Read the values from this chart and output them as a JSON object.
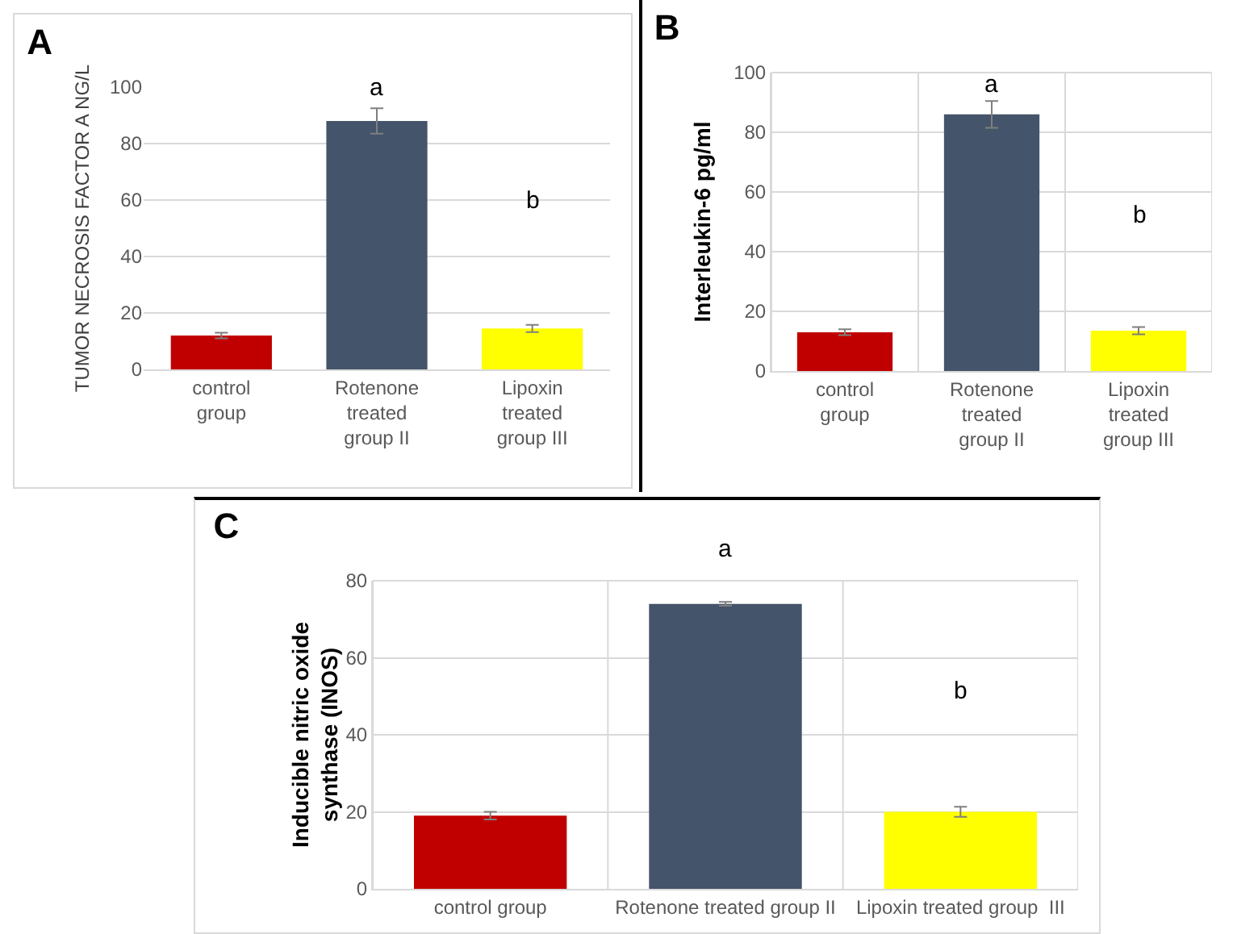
{
  "chart_data": [
    {
      "type": "bar",
      "title": "A",
      "ylabel": "TUMOR NECROSIS FACTOR A NG/L",
      "categories": [
        "control group",
        "Rotenone treated group II",
        "Lipoxin treated group III"
      ],
      "values": [
        12,
        88,
        14.5
      ],
      "colors": [
        "#c00000",
        "#44546a",
        "#ffff00"
      ],
      "errors": [
        1,
        4.5,
        1.3
      ],
      "ylim": [
        0,
        100
      ],
      "yticks": [
        0,
        20,
        40,
        60,
        80,
        100
      ],
      "grid": "y",
      "annotations": [
        "a",
        "b"
      ]
    },
    {
      "type": "bar",
      "title": "B",
      "ylabel": "Interleukin-6 pg/ml",
      "categories": [
        "control group",
        "Rotenone treated group II",
        "Lipoxin treated group III"
      ],
      "values": [
        13,
        86,
        13.5
      ],
      "colors": [
        "#c00000",
        "#44546a",
        "#ffff00"
      ],
      "errors": [
        1,
        4.5,
        1.2
      ],
      "ylim": [
        0,
        100
      ],
      "yticks": [
        0,
        20,
        40,
        60,
        80,
        100
      ],
      "grid": true,
      "annotations": [
        "a",
        "b"
      ]
    },
    {
      "type": "bar",
      "title": "C",
      "ylabel": "Inducible nitric oxide synthase (INOS)",
      "categories": [
        "control group",
        "Rotenone treated group II",
        "Lipoxin treated group  III"
      ],
      "values": [
        19,
        74,
        20
      ],
      "colors": [
        "#c00000",
        "#44546a",
        "#ffff00"
      ],
      "errors": [
        1,
        0.5,
        1.3
      ],
      "ylim": [
        0,
        80
      ],
      "yticks": [
        0,
        20,
        40,
        60,
        80
      ],
      "grid": true,
      "annotations": [
        "a",
        "b"
      ]
    }
  ]
}
